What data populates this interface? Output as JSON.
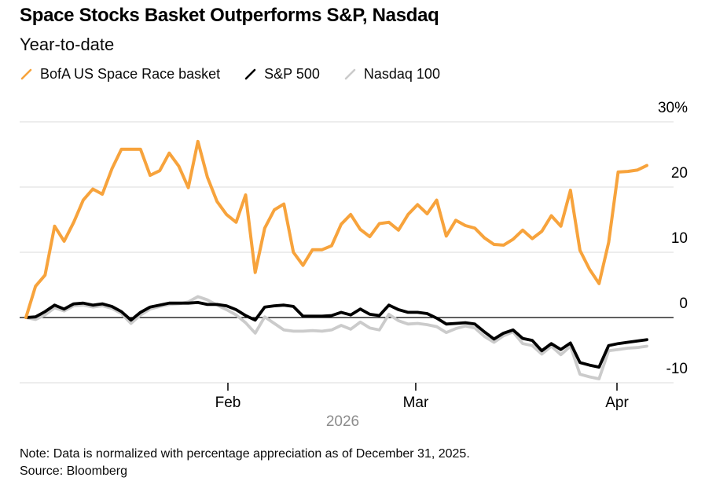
{
  "header": {
    "title": "Space Stocks Basket Outperforms S&P, Nasdaq",
    "subtitle": "Year-to-date"
  },
  "footer": {
    "note": "Note: Data is normalized with percentage appreciation as of December 31, 2025.",
    "source": "Source: Bloomberg"
  },
  "chart_data": {
    "type": "line",
    "title": "Space Stocks Basket Outperforms S&P, Nasdaq",
    "subtitle": "Year-to-date",
    "grid": "horizontal",
    "legend_position": "top",
    "x_axis": {
      "year_label": "2026",
      "ticks": [
        {
          "label": "Feb",
          "pos": 0.3253
        },
        {
          "label": "Mar",
          "pos": 0.6278
        },
        {
          "label": "Apr",
          "pos": 0.9519
        }
      ],
      "span": "Dec 31, 2025 - early Apr 2026, daily"
    },
    "y_axis": {
      "unit": "%",
      "range": [
        -10,
        30
      ],
      "ticks": [
        {
          "value": 30,
          "label": "30%"
        },
        {
          "value": 20,
          "label": "20"
        },
        {
          "value": 10,
          "label": "10"
        },
        {
          "value": 0,
          "label": "0"
        },
        {
          "value": -10,
          "label": "-10"
        }
      ]
    },
    "colors": {
      "basket_orange": "#F7A33C",
      "sp500_black": "#000000",
      "nasdaq_gray": "#CBCBCB",
      "gridline": "#DBDBDB",
      "zero_line": "#000000",
      "year_label_gray": "#8C8C8C"
    },
    "series": [
      {
        "name": "BofA US Space Race basket",
        "color": "#F7A33C",
        "values": [
          0,
          4.8,
          6.5,
          14.0,
          11.7,
          14.6,
          18.0,
          19.7,
          18.9,
          22.8,
          25.8,
          25.8,
          25.8,
          21.8,
          22.5,
          25.2,
          23.2,
          19.9,
          27.0,
          21.5,
          17.8,
          15.8,
          14.6,
          18.8,
          6.9,
          13.7,
          16.5,
          17.4,
          10.0,
          8.0,
          10.4,
          10.4,
          11.0,
          14.3,
          15.8,
          13.5,
          12.4,
          14.4,
          14.6,
          13.4,
          15.8,
          17.3,
          15.9,
          18.0,
          12.5,
          14.9,
          14.1,
          13.7,
          12.2,
          11.2,
          11.1,
          12.0,
          13.4,
          12.1,
          13.2,
          15.6,
          14.0,
          19.5,
          10.3,
          7.4,
          5.2,
          11.5,
          22.3,
          22.4,
          22.6,
          23.3
        ]
      },
      {
        "name": "S&P 500",
        "color": "#000000",
        "values": [
          0,
          0.1,
          0.9,
          1.9,
          1.3,
          2.1,
          2.2,
          1.9,
          2.1,
          1.7,
          0.9,
          -0.4,
          0.8,
          1.6,
          1.9,
          2.2,
          2.2,
          2.2,
          2.3,
          2.0,
          2.0,
          1.8,
          1.2,
          0.3,
          -0.4,
          1.6,
          1.8,
          1.9,
          1.7,
          0.2,
          0.2,
          0.2,
          0.3,
          0.8,
          0.4,
          1.3,
          0.5,
          0.3,
          1.9,
          1.2,
          0.8,
          0.8,
          0.6,
          -0.1,
          -1.0,
          -0.9,
          -0.8,
          -1.0,
          -2.2,
          -3.3,
          -2.4,
          -1.9,
          -3.2,
          -3.5,
          -5.1,
          -4.0,
          -4.9,
          -3.9,
          -6.9,
          -7.3,
          -7.6,
          -4.3,
          -4.0,
          -3.8,
          -3.6,
          -3.4
        ]
      },
      {
        "name": "Nasdaq 100",
        "color": "#CBCBCB",
        "values": [
          0,
          -0.3,
          0.4,
          1.5,
          1.0,
          1.8,
          1.9,
          1.6,
          1.8,
          1.4,
          0.6,
          -0.9,
          0.4,
          1.3,
          1.7,
          2.0,
          2.1,
          2.4,
          3.2,
          2.7,
          1.9,
          1.2,
          0.4,
          -0.8,
          -2.4,
          0.1,
          -0.9,
          -1.9,
          -2.1,
          -2.1,
          -2.0,
          -2.1,
          -1.9,
          -1.2,
          -1.8,
          -0.7,
          -1.6,
          -1.9,
          0.5,
          -0.5,
          -1.0,
          -0.9,
          -1.1,
          -1.4,
          -2.3,
          -1.7,
          -1.3,
          -1.6,
          -2.9,
          -3.8,
          -2.8,
          -2.2,
          -4.0,
          -4.3,
          -5.6,
          -4.4,
          -5.7,
          -4.4,
          -8.7,
          -9.1,
          -9.4,
          -5.1,
          -4.9,
          -4.7,
          -4.6,
          -4.4
        ]
      }
    ],
    "note": "Note: Data is normalized with percentage appreciation as of December 31, 2025.",
    "source": "Source: Bloomberg"
  }
}
